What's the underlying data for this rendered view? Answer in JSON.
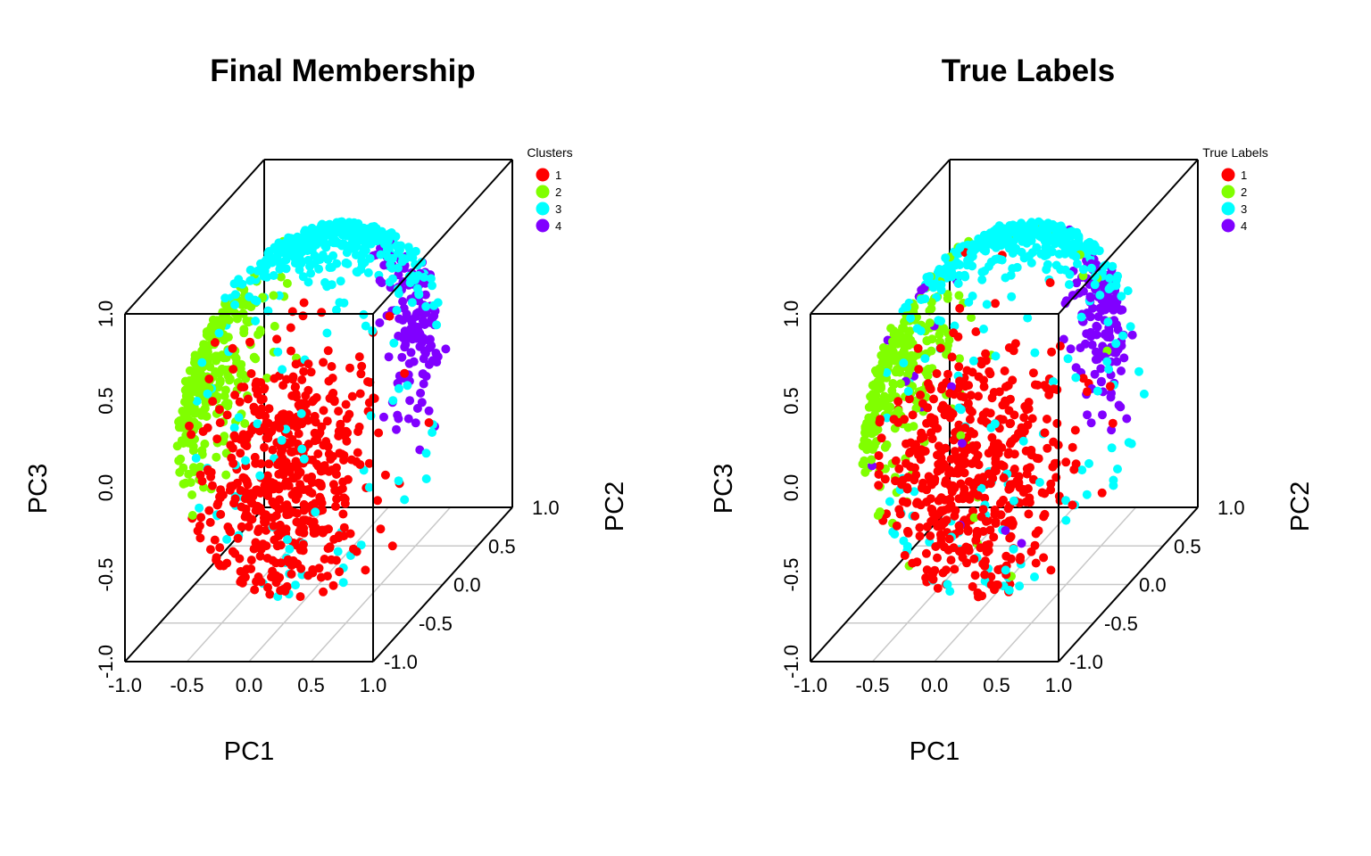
{
  "chart_data": [
    {
      "type": "scatter",
      "title": "Final Membership",
      "xlabel": "PC1",
      "ylabel": "PC2",
      "zlabel": "PC3",
      "xlim": [
        -1.0,
        1.0
      ],
      "ylim": [
        -1.0,
        1.0
      ],
      "zlim": [
        -1.0,
        1.0
      ],
      "x_ticks": [
        "-1.0",
        "-0.5",
        "0.0",
        "0.5",
        "1.0"
      ],
      "y_ticks": [
        "-1.0",
        "-0.5",
        "0.0",
        "0.5",
        "1.0"
      ],
      "z_ticks": [
        "-1.0",
        "-0.5",
        "0.0",
        "0.5",
        "1.0"
      ],
      "legend": {
        "title": "Clusters",
        "placement": "top-right",
        "entries": [
          {
            "label": "1",
            "color": "#ff0000"
          },
          {
            "label": "2",
            "color": "#80ff00"
          },
          {
            "label": "3",
            "color": "#00ffff"
          },
          {
            "label": "4",
            "color": "#8000ff"
          }
        ]
      }
    },
    {
      "type": "scatter",
      "title": "True Labels",
      "xlabel": "PC1",
      "ylabel": "PC2",
      "zlabel": "PC3",
      "xlim": [
        -1.0,
        1.0
      ],
      "ylim": [
        -1.0,
        1.0
      ],
      "zlim": [
        -1.0,
        1.0
      ],
      "x_ticks": [
        "-1.0",
        "-0.5",
        "0.0",
        "0.5",
        "1.0"
      ],
      "y_ticks": [
        "-1.0",
        "-0.5",
        "0.0",
        "0.5",
        "1.0"
      ],
      "z_ticks": [
        "-1.0",
        "-0.5",
        "0.0",
        "0.5",
        "1.0"
      ],
      "legend": {
        "title": "True Labels",
        "placement": "top-right",
        "entries": [
          {
            "label": "1",
            "color": "#ff0000"
          },
          {
            "label": "2",
            "color": "#80ff00"
          },
          {
            "label": "3",
            "color": "#00ffff"
          },
          {
            "label": "4",
            "color": "#8000ff"
          }
        ]
      }
    }
  ]
}
